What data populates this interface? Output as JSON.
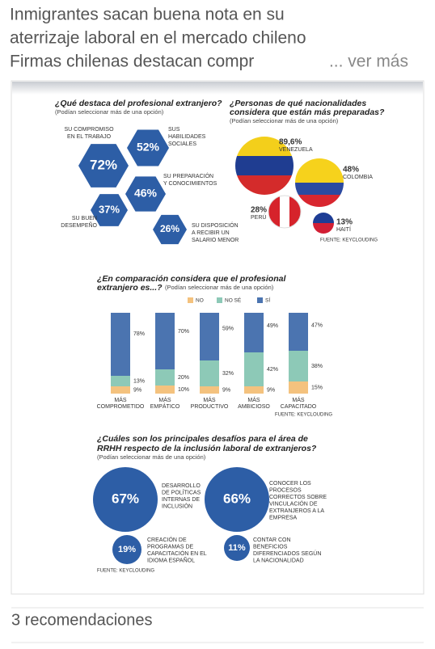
{
  "post": {
    "title": [
      "Inmigrantes sacan buena nota en su",
      "aterrizaje laboral en el mercado chileno",
      "Firmas chilenas destacan compr"
    ],
    "more": "... ver más",
    "recommendations": "3 recomendaciones"
  },
  "infographic": {
    "q1": {
      "title": "¿Qué destaca del profesional extranjero?",
      "note": "(Podían seleccionar más de una opción)",
      "items": [
        {
          "value": "72%",
          "label": [
            "SU COMPROMISO",
            "EN EL TRABAJO"
          ]
        },
        {
          "value": "52%",
          "label": [
            "SUS",
            "HABILIDADES",
            "SOCIALES"
          ]
        },
        {
          "value": "46%",
          "label": [
            "SU PREPARACIÓN",
            "Y CONOCIMIENTOS"
          ]
        },
        {
          "value": "37%",
          "label": [
            "SU BUEN",
            "DESEMPEÑO"
          ]
        },
        {
          "value": "26%",
          "label": [
            "SU DISPOSICIÓN",
            "A RECIBIR UN",
            "SALARIO MENOR"
          ]
        }
      ]
    },
    "q2": {
      "title": [
        "¿Personas de qué nacionalidades",
        "considera que están más preparadas?"
      ],
      "note": "(Podían seleccionar más de una opción)",
      "items": [
        {
          "value": "89,6%",
          "label": "VENEZUELA"
        },
        {
          "value": "48%",
          "label": "COLOMBIA"
        },
        {
          "value": "28%",
          "label": "PERÚ"
        },
        {
          "value": "13%",
          "label": "HAITÍ"
        }
      ],
      "source": "FUENTE: KEYCLOUDING"
    },
    "q4": {
      "title": [
        "¿Cuáles son los principales desafíos para el área de",
        "RRHH respecto de la inclusión laboral de extranjeros?"
      ],
      "note": "(Podían seleccionar más de una opción)",
      "items": [
        {
          "value": "67%",
          "label": [
            "DESARROLLO",
            "DE POLÍTICAS",
            "INTERNAS DE",
            "INCLUSIÓN"
          ]
        },
        {
          "value": "66%",
          "label": [
            "CONOCER LOS",
            "PROCESOS",
            "CORRECTOS SOBRE",
            "VINCULACIÓN DE",
            "EXTRANJEROS A LA",
            "EMPRESA"
          ]
        },
        {
          "value": "19%",
          "label": [
            "CREACIÓN DE",
            "PROGRAMAS DE",
            "CAPACITACIÓN EN EL",
            "IDIOMA ESPAÑOL"
          ]
        },
        {
          "value": "11%",
          "label": [
            "CONTAR CON",
            "BENEFICIOS",
            "DIFERENCIADOS SEGÚN",
            "LA NACIONALIDAD"
          ]
        }
      ],
      "source": "FUENTE: KEYCLOUDING"
    }
  },
  "chart_data": {
    "type": "stacked-bar",
    "title": [
      "¿En comparación considera que el profesional",
      "extranjero es...?"
    ],
    "subtitle": "(Podían seleccionar más de una opción)",
    "categories": [
      [
        "MÁS",
        "COMPROMETIDO"
      ],
      [
        "MÁS",
        "EMPÁTICO"
      ],
      [
        "MÁS",
        "PRODUCTIVO"
      ],
      [
        "MÁS",
        "AMBICIOSO"
      ],
      [
        "MÁS",
        "CAPACITADO"
      ]
    ],
    "series": [
      {
        "name": "NO",
        "color": "#f4c27e",
        "values": [
          9,
          10,
          9,
          9,
          15
        ],
        "value_labels": [
          "9%",
          "10%",
          "9%",
          "9%",
          "15%"
        ]
      },
      {
        "name": "NO SÉ",
        "color": "#8dc9b7",
        "values": [
          13,
          20,
          32,
          42,
          38
        ],
        "value_labels": [
          "13%",
          "20%",
          "32%",
          "42%",
          "38%"
        ]
      },
      {
        "name": "SÍ",
        "color": "#4b74b0",
        "values": [
          78,
          70,
          59,
          49,
          47
        ],
        "value_labels": [
          "78%",
          "70%",
          "59%",
          "49%",
          "47%"
        ]
      }
    ],
    "source": "FUENTE: KEYCLOUDING"
  }
}
